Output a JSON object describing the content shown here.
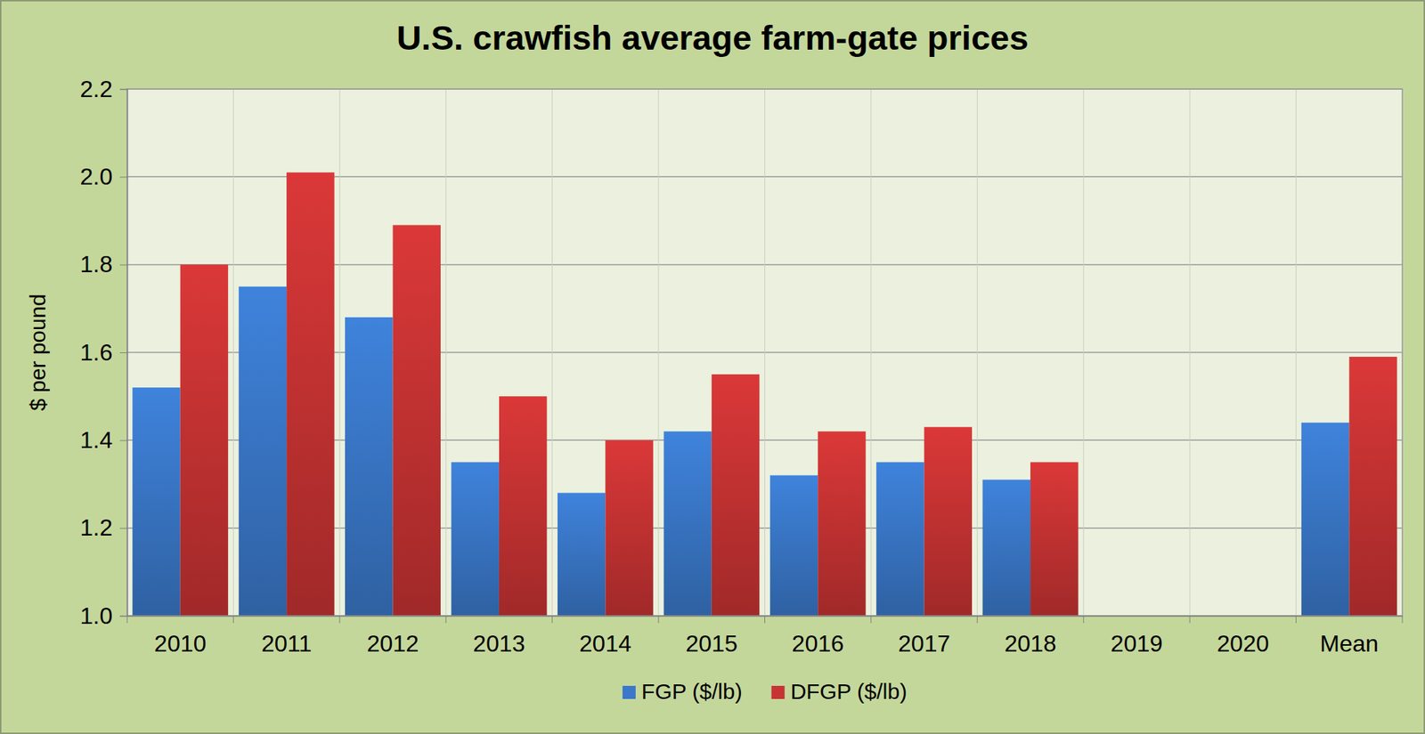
{
  "chart_data": {
    "type": "bar",
    "title": "U.S. crawfish average farm-gate prices",
    "y_label": "$ per pound",
    "categories": [
      "2010",
      "2011",
      "2012",
      "2013",
      "2014",
      "2015",
      "2016",
      "2017",
      "2018",
      "2019",
      "2020",
      "Mean"
    ],
    "series": [
      {
        "name": "FGP ($/lb)",
        "color": "#3a78c9",
        "values": [
          1.52,
          1.75,
          1.68,
          1.35,
          1.28,
          1.42,
          1.32,
          1.35,
          1.31,
          null,
          null,
          1.44
        ]
      },
      {
        "name": "DFGP ($/lb)",
        "color": "#c83333",
        "values": [
          1.8,
          2.01,
          1.89,
          1.5,
          1.4,
          1.55,
          1.42,
          1.43,
          1.35,
          null,
          null,
          1.59
        ]
      }
    ],
    "ylim": [
      1.0,
      2.2
    ],
    "yticks": [
      {
        "value": 1.0,
        "label": "1.0"
      },
      1.2,
      1.4,
      1.6,
      1.8,
      {
        "value": 2.0,
        "label": "2.0"
      },
      2.2
    ],
    "grid": true,
    "legend": "bottom"
  }
}
